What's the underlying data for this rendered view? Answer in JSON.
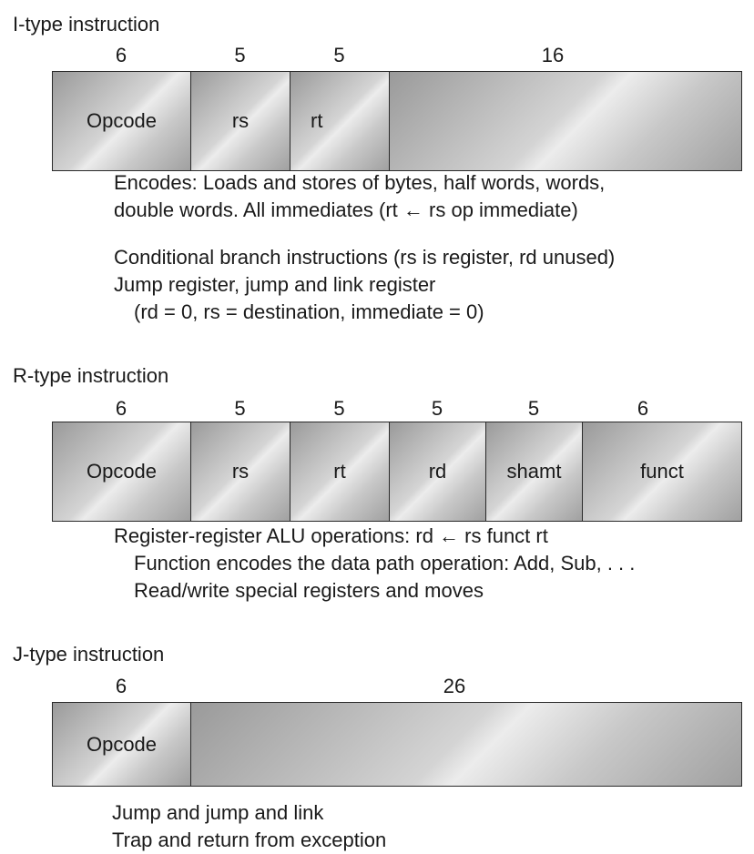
{
  "formats": [
    {
      "title": "I-type instruction",
      "fields": [
        {
          "bits": "6",
          "label": "Opcode"
        },
        {
          "bits": "5",
          "label": "rs"
        },
        {
          "bits": "5",
          "label": "rt"
        },
        {
          "bits": "16",
          "label": ""
        }
      ],
      "descriptions": [
        "Encodes: Loads and stores of bytes, half words, words,",
        "double words. All immediates (rt ← rs op immediate)",
        "Conditional branch instructions (rs is register, rd unused)",
        "Jump register, jump and link register",
        "(rd = 0, rs = destination, immediate = 0)"
      ]
    },
    {
      "title": "R-type instruction",
      "fields": [
        {
          "bits": "6",
          "label": "Opcode"
        },
        {
          "bits": "5",
          "label": "rs"
        },
        {
          "bits": "5",
          "label": "rt"
        },
        {
          "bits": "5",
          "label": "rd"
        },
        {
          "bits": "5",
          "label": "shamt"
        },
        {
          "bits": "6",
          "label": "funct"
        }
      ],
      "descriptions": [
        "Register-register ALU operations: rd ← rs funct rt",
        "Function encodes the data path operation: Add, Sub, . . .",
        "Read/write special registers and moves"
      ]
    },
    {
      "title": "J-type instruction",
      "fields": [
        {
          "bits": "6",
          "label": "Opcode"
        },
        {
          "bits": "26",
          "label": ""
        }
      ],
      "descriptions": [
        "Jump and jump and link",
        "Trap and return from exception"
      ]
    }
  ]
}
